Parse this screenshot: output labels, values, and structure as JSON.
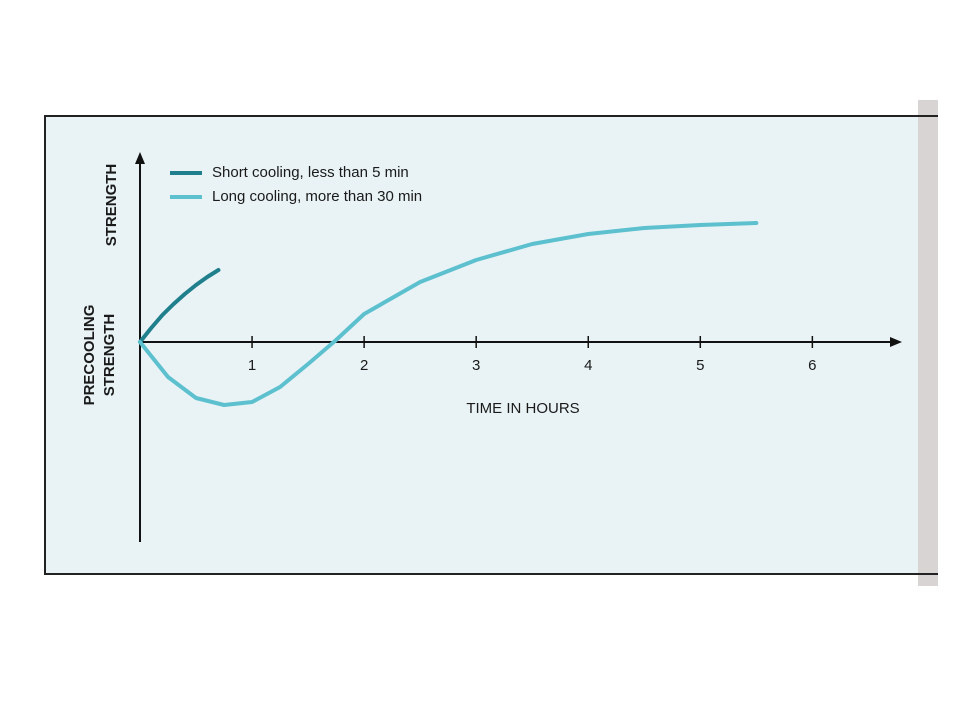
{
  "chart_data": {
    "type": "line",
    "x_label": "TIME IN HOURS",
    "y_label_upper": "STRENGTH",
    "y_label_lower": [
      "PRECOOLING",
      "STRENGTH"
    ],
    "xlim": [
      0,
      6.8
    ],
    "xticks": [
      1,
      2,
      3,
      4,
      5,
      6
    ],
    "ylim": [
      -2.3,
      1.9
    ],
    "series": [
      {
        "name": "Short cooling, less than 5 min",
        "color": "#1f7f8c",
        "x": [
          0,
          0.1,
          0.2,
          0.3,
          0.4,
          0.5,
          0.6,
          0.7
        ],
        "values": [
          0,
          0.14,
          0.27,
          0.38,
          0.48,
          0.57,
          0.65,
          0.72
        ]
      },
      {
        "name": "Long cooling, more than 30 min",
        "color": "#5cc0cf",
        "x": [
          0,
          0.25,
          0.5,
          0.75,
          1,
          1.25,
          1.5,
          1.75,
          2,
          2.5,
          3,
          3.5,
          4,
          4.5,
          5,
          5.5
        ],
        "values": [
          0,
          -0.35,
          -0.56,
          -0.63,
          -0.6,
          -0.45,
          -0.22,
          0.02,
          0.28,
          0.6,
          0.82,
          0.98,
          1.08,
          1.14,
          1.17,
          1.19
        ]
      }
    ]
  }
}
